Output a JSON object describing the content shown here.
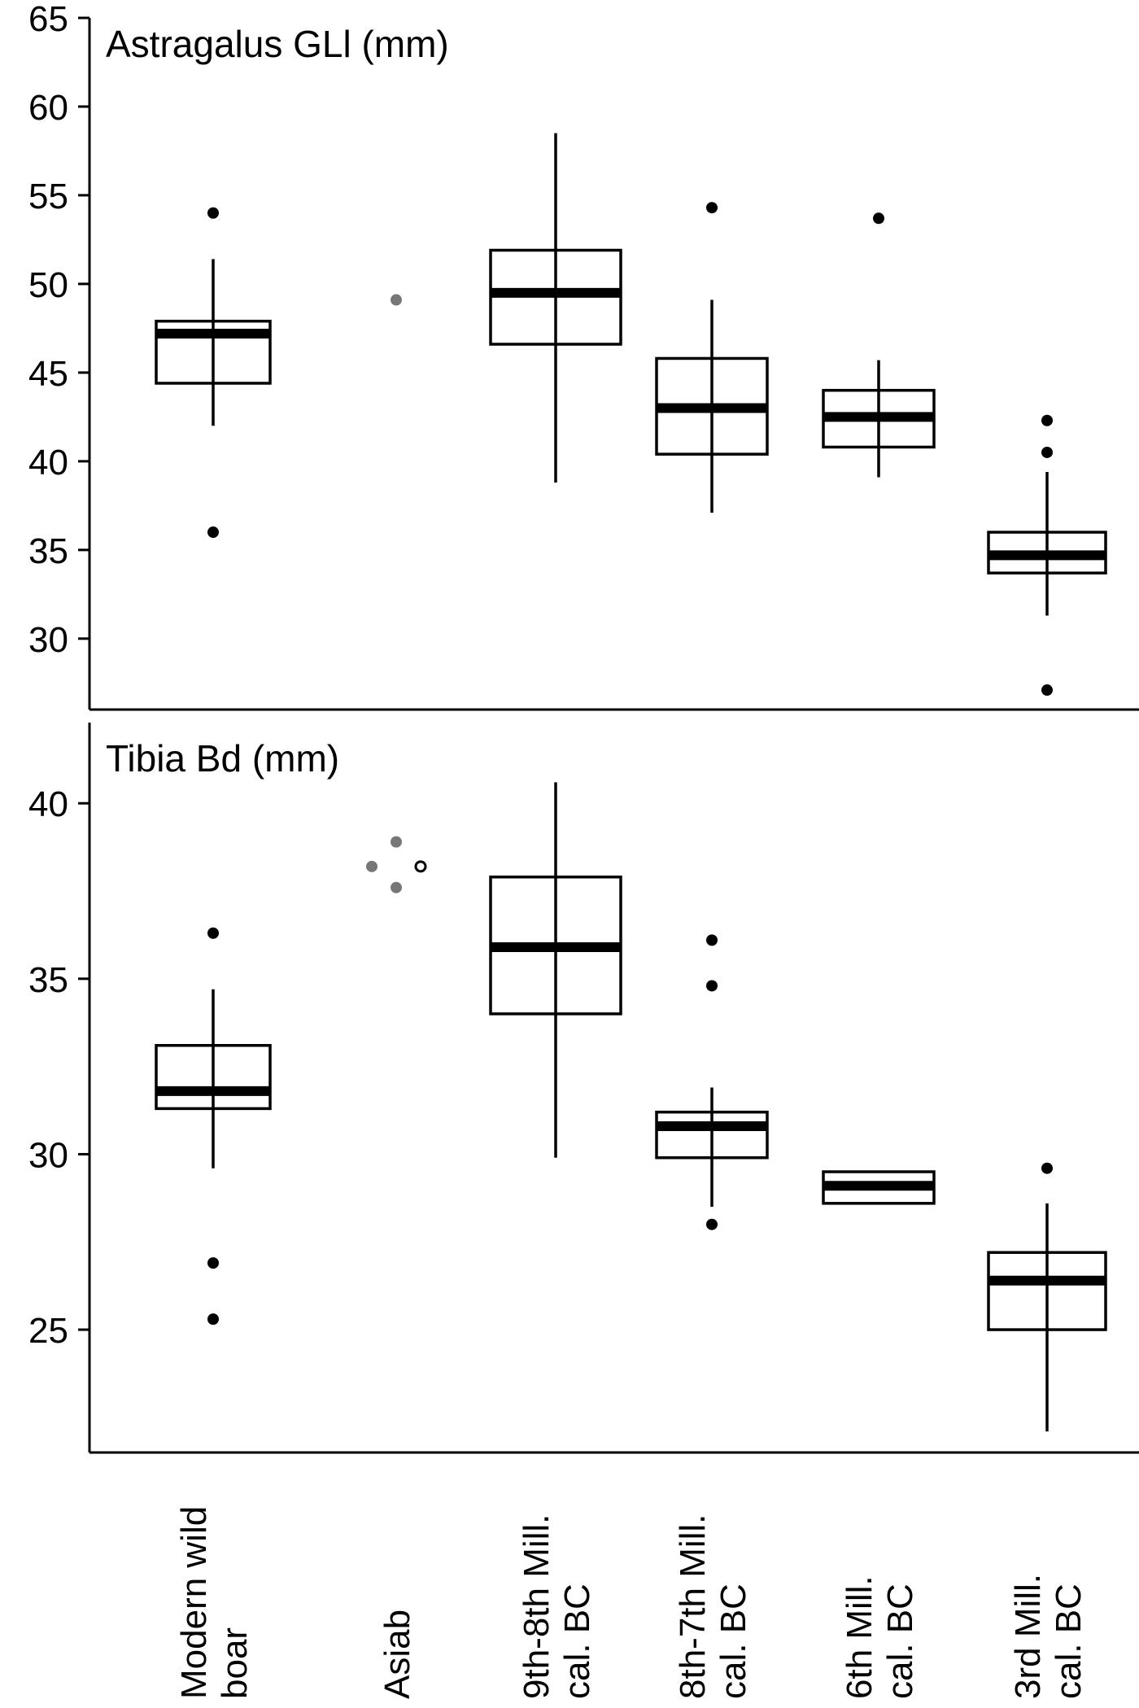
{
  "chart_data": {
    "type": "box",
    "categories": [
      [
        "Modern wild",
        "boar"
      ],
      [
        "Asiab"
      ],
      [
        "9th-8th Mill.",
        "cal. BC"
      ],
      [
        "8th-7th Mill.",
        "cal. BC"
      ],
      [
        "6th Mill.",
        "cal. BC"
      ],
      [
        "3rd Mill.",
        "cal. BC"
      ]
    ],
    "panels": [
      {
        "title": "Astragalus GLl (mm)",
        "ylim": [
          26,
          65
        ],
        "yticks": [
          30,
          35,
          40,
          45,
          50,
          55,
          60,
          65
        ],
        "groups": [
          {
            "whisker_low": 42.0,
            "q1": 44.4,
            "median": 47.2,
            "q3": 47.9,
            "whisker_high": 51.4,
            "outliers": [
              54.0,
              36.0
            ]
          },
          {
            "points": [
              {
                "value": 49.1,
                "style": "gray"
              }
            ]
          },
          {
            "whisker_low": 38.8,
            "q1": 46.6,
            "median": 49.5,
            "q3": 51.9,
            "whisker_high": 58.5,
            "outliers": []
          },
          {
            "whisker_low": 37.1,
            "q1": 40.4,
            "median": 43.0,
            "q3": 45.8,
            "whisker_high": 49.1,
            "outliers": [
              54.3
            ]
          },
          {
            "whisker_low": 39.1,
            "q1": 40.8,
            "median": 42.5,
            "q3": 44.0,
            "whisker_high": 45.7,
            "outliers": [
              53.7
            ]
          },
          {
            "whisker_low": 31.3,
            "q1": 33.7,
            "median": 34.7,
            "q3": 36.0,
            "whisker_high": 39.4,
            "outliers": [
              42.3,
              40.5,
              27.1
            ]
          }
        ]
      },
      {
        "title": "Tibia Bd (mm)",
        "ylim": [
          21.5,
          42.3
        ],
        "yticks": [
          25,
          30,
          35,
          40
        ],
        "groups": [
          {
            "whisker_low": 29.6,
            "q1": 31.3,
            "median": 31.8,
            "q3": 33.1,
            "whisker_high": 34.7,
            "outliers": [
              36.3,
              26.9,
              25.3
            ]
          },
          {
            "points": [
              {
                "value": 38.9,
                "style": "gray",
                "offset": 0
              },
              {
                "value": 38.2,
                "style": "gray",
                "offset": -1
              },
              {
                "value": 38.2,
                "style": "open",
                "offset": 1
              },
              {
                "value": 37.6,
                "style": "gray",
                "offset": 0
              }
            ]
          },
          {
            "whisker_low": 29.9,
            "q1": 34.0,
            "median": 35.9,
            "q3": 37.9,
            "whisker_high": 40.6,
            "outliers": []
          },
          {
            "whisker_low": 28.5,
            "q1": 29.9,
            "median": 30.8,
            "q3": 31.2,
            "whisker_high": 31.9,
            "outliers": [
              36.1,
              34.8,
              28.0
            ]
          },
          {
            "whisker_low": null,
            "q1": 28.6,
            "median": 29.1,
            "q3": 29.5,
            "whisker_high": null,
            "outliers": []
          },
          {
            "whisker_low": 22.1,
            "q1": 25.0,
            "median": 26.4,
            "q3": 27.2,
            "whisker_high": 28.6,
            "outliers": [
              29.6
            ]
          }
        ]
      }
    ],
    "colors": {
      "box": "#000000",
      "point": "#000000",
      "gray_point": "#777777"
    }
  }
}
